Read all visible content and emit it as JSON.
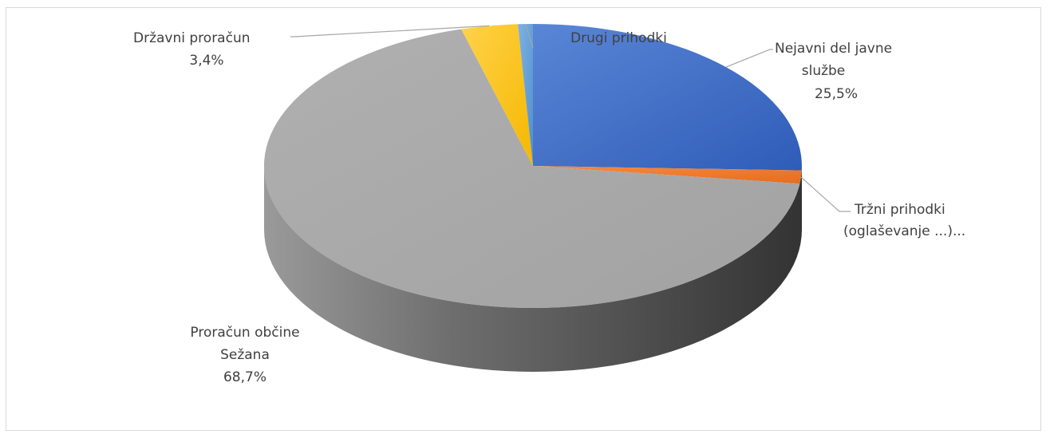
{
  "chart_data": {
    "type": "pie",
    "style": "3d",
    "slices": [
      {
        "label_lines": [
          "Nejavni del javne",
          "službe"
        ],
        "value": 25.5,
        "value_text": "25,5%",
        "color": "#4472c4"
      },
      {
        "label_lines": [
          "Tržni prihodki",
          "(oglaševanje ...)..."
        ],
        "value": 1.5,
        "value_text": "",
        "color": "#ed7d31"
      },
      {
        "label_lines": [
          "Proračun občine",
          "Sežana"
        ],
        "value": 68.7,
        "value_text": "68,7%",
        "color": "#a5a5a5"
      },
      {
        "label_lines": [
          "Državni proračun"
        ],
        "value": 3.4,
        "value_text": "3,4%",
        "color": "#ffc000"
      },
      {
        "label_lines": [
          "Drugi prihodki"
        ],
        "value": 0.9,
        "value_text": "",
        "color": "#5b9bd5"
      }
    ]
  }
}
